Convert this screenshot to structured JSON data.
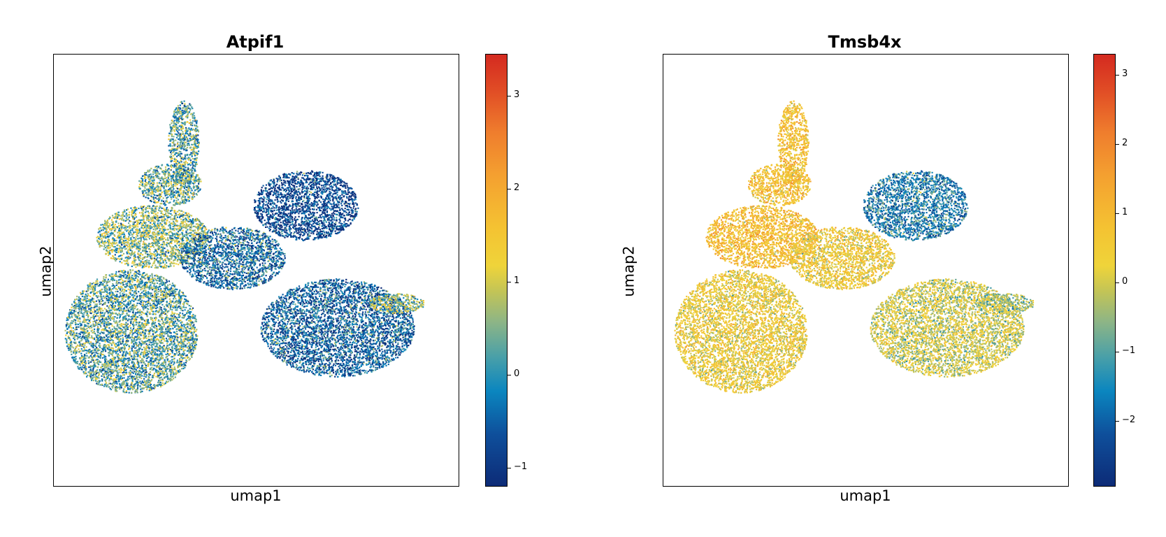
{
  "panels": [
    {
      "title": "Atpif1",
      "xlabel": "umap1",
      "ylabel": "umap2",
      "colorbar": {
        "min": -1.2,
        "max": 3.45,
        "ticks": [
          -1,
          0,
          1,
          2,
          3
        ],
        "tick_labels": [
          "−1",
          "0",
          "1",
          "2",
          "3"
        ]
      }
    },
    {
      "title": "Tmsb4x",
      "xlabel": "umap1",
      "ylabel": "umap2",
      "colorbar": {
        "min": -2.95,
        "max": 3.3,
        "ticks": [
          -2,
          -1,
          0,
          1,
          2,
          3
        ],
        "tick_labels": [
          "−2",
          "−1",
          "0",
          "1",
          "2",
          "3"
        ]
      }
    }
  ],
  "colors": {
    "colormap": [
      "#0d2b77",
      "#0e4f9b",
      "#0b86bf",
      "#8db586",
      "#efd43a",
      "#f4c232",
      "#f4a030",
      "#ef7d2d",
      "#d42a20"
    ],
    "frame": "#000000"
  },
  "chart_data": [
    {
      "type": "scatter",
      "title": "Atpif1",
      "xlabel": "umap1",
      "ylabel": "umap2",
      "color_variable": "Atpif1 expression",
      "colorbar_range": [
        -1.2,
        3.45
      ],
      "regions": [
        {
          "name": "bottom-left mass",
          "mean_expression": 0.3
        },
        {
          "name": "left lobe",
          "mean_expression": 0.6
        },
        {
          "name": "upper-left arm",
          "mean_expression": 0.4
        },
        {
          "name": "top stalk",
          "mean_expression": 0.3
        },
        {
          "name": "center",
          "mean_expression": -0.3
        },
        {
          "name": "upper-right arm",
          "mean_expression": -0.8
        },
        {
          "name": "right mass",
          "mean_expression": -0.4
        },
        {
          "name": "right tip",
          "mean_expression": 0.7
        }
      ]
    },
    {
      "type": "scatter",
      "title": "Tmsb4x",
      "xlabel": "umap1",
      "ylabel": "umap2",
      "color_variable": "Tmsb4x expression",
      "colorbar_range": [
        -2.95,
        3.3
      ],
      "regions": [
        {
          "name": "bottom-left mass",
          "mean_expression": 0.4
        },
        {
          "name": "left lobe",
          "mean_expression": 1.0
        },
        {
          "name": "upper-left arm",
          "mean_expression": 0.9
        },
        {
          "name": "top stalk",
          "mean_expression": 0.9
        },
        {
          "name": "center",
          "mean_expression": 0.5
        },
        {
          "name": "upper-right arm",
          "mean_expression": -1.5
        },
        {
          "name": "right mass",
          "mean_expression": 0.0
        },
        {
          "name": "right tip",
          "mean_expression": -0.3
        }
      ]
    }
  ]
}
